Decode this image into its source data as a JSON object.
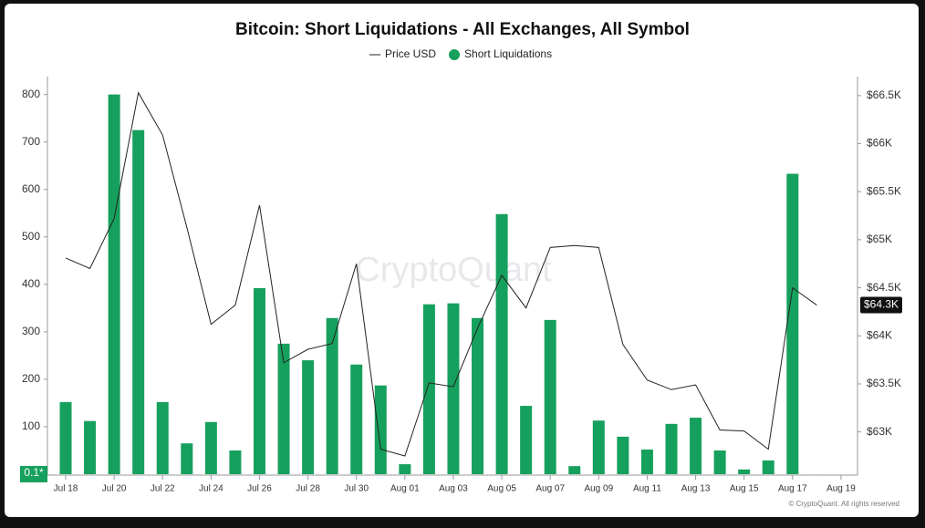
{
  "chart_data": {
    "type": "bar_line",
    "title": "Bitcoin: Short Liquidations - All Exchanges, All Symbol",
    "watermark": "CryptoQuant",
    "credit": "© CryptoQuant. All rights reserved",
    "categories": [
      "Jul 18",
      null,
      "Jul 20",
      null,
      "Jul 22",
      null,
      "Jul 24",
      null,
      "Jul 26",
      null,
      "Jul 28",
      null,
      "Jul 30",
      null,
      "Aug 01",
      null,
      "Aug 03",
      null,
      "Aug 05",
      null,
      "Aug 07",
      null,
      "Aug 09",
      null,
      "Aug 11",
      null,
      "Aug 13",
      null,
      "Aug 15",
      null,
      "Aug 17",
      null,
      "Aug 19"
    ],
    "series": [
      {
        "name": "Price USD",
        "color": "#222222",
        "axis": "y2",
        "kind": "line",
        "values": [
          64810,
          64700,
          65220,
          66530,
          66090,
          65130,
          64120,
          64320,
          65360,
          63720,
          63860,
          63920,
          64750,
          62820,
          62750,
          63510,
          63470,
          64080,
          64630,
          64290,
          64920,
          64940,
          64920,
          63910,
          63540,
          63440,
          63490,
          63020,
          63010,
          62820,
          64500,
          64320,
          null
        ],
        "value_labels": [
          null,
          null,
          null,
          null,
          null,
          null,
          null,
          null,
          null,
          null,
          null,
          null,
          null,
          null,
          null,
          null,
          null,
          null,
          null,
          null,
          null,
          null,
          null,
          null,
          null,
          null,
          null,
          null,
          null,
          null,
          null,
          "$64.3K",
          null
        ]
      },
      {
        "name": "Short Liquidations",
        "color": "#16a05d",
        "kind": "bar",
        "values": [
          152,
          112,
          800,
          725,
          152,
          65,
          110,
          50,
          392,
          275,
          240,
          329,
          231,
          187,
          21,
          358,
          360,
          329,
          548,
          144,
          325,
          17,
          113,
          79,
          52,
          106,
          119,
          50,
          10,
          29,
          633,
          0.1,
          null
        ],
        "value_labels": [
          null,
          null,
          null,
          null,
          null,
          null,
          null,
          null,
          null,
          null,
          null,
          null,
          null,
          null,
          null,
          null,
          null,
          null,
          null,
          null,
          null,
          null,
          null,
          null,
          null,
          null,
          null,
          null,
          null,
          null,
          null,
          "0.1*",
          null
        ]
      }
    ],
    "ylim": [
      0,
      830
    ],
    "yticks": [
      100,
      200,
      300,
      400,
      500,
      600,
      700,
      800
    ],
    "y2lim": [
      62560,
      66660
    ],
    "y2ticks": [
      {
        "value": 63000,
        "label": "$63K"
      },
      {
        "value": 63500,
        "label": "$63.5K"
      },
      {
        "value": 64000,
        "label": "$64K"
      },
      {
        "value": 64500,
        "label": "$64.5K"
      },
      {
        "value": 65000,
        "label": "$65K"
      },
      {
        "value": 65500,
        "label": "$65.5K"
      },
      {
        "value": 66000,
        "label": "$66K"
      },
      {
        "value": 66500,
        "label": "$66.5K"
      }
    ],
    "grid": false
  }
}
